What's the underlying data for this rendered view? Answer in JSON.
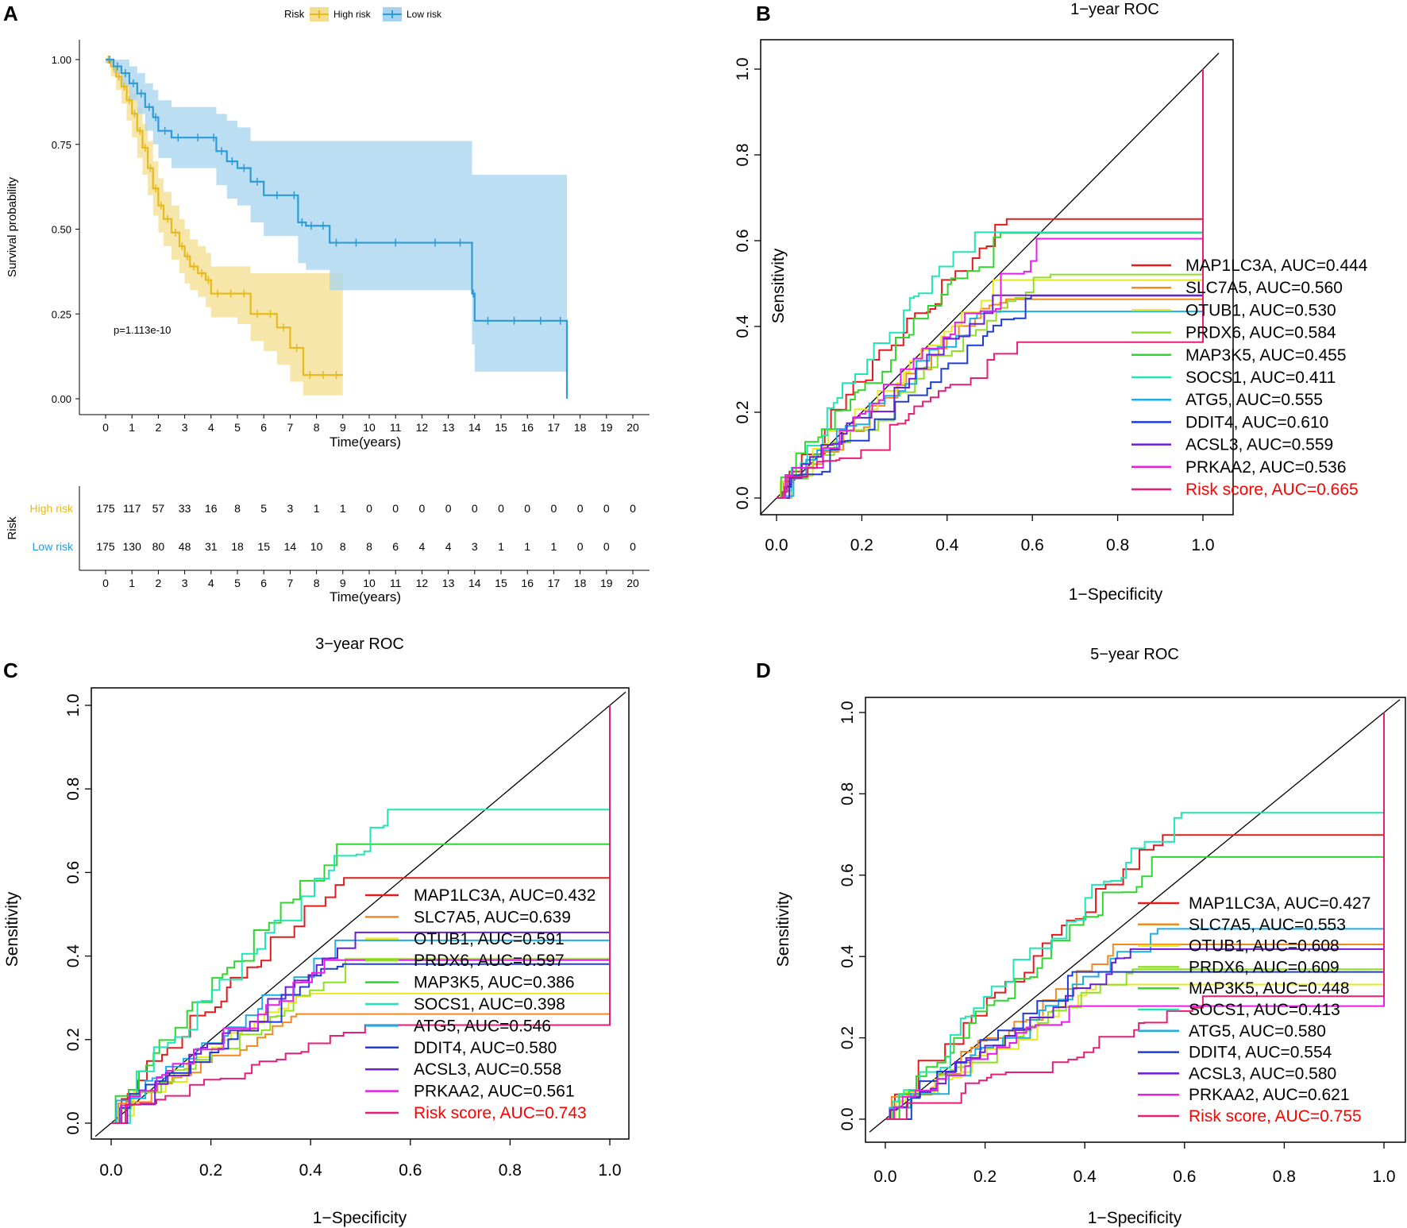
{
  "panels": {
    "A": {
      "letter": "A"
    },
    "B": {
      "letter": "B"
    },
    "C": {
      "letter": "C"
    },
    "D": {
      "letter": "D"
    }
  },
  "colors": {
    "high_risk": "#e6b91e",
    "low_risk": "#2d9bd6",
    "high_ci": "#f3dd8e",
    "low_ci": "#a6d3ef",
    "risk_label_red": "#ff0000"
  },
  "chart_data": [
    {
      "id": "A",
      "type": "line",
      "subtype": "kaplan-meier",
      "title": "",
      "xlabel": "Time(years)",
      "ylabel": "Survival probability",
      "xlim": [
        0,
        20
      ],
      "ylim": [
        0,
        1
      ],
      "xticks": [
        "0",
        "1",
        "2",
        "3",
        "4",
        "5",
        "6",
        "7",
        "8",
        "9",
        "10",
        "11",
        "12",
        "13",
        "14",
        "15",
        "16",
        "17",
        "18",
        "19",
        "20"
      ],
      "yticks": [
        "0.00",
        "0.25",
        "0.50",
        "0.75",
        "1.00"
      ],
      "legend": {
        "title": "Risk",
        "entries": [
          "High risk",
          "Low risk"
        ],
        "position": "top"
      },
      "annotation": "p=1.113e-10",
      "series": [
        {
          "name": "High risk",
          "x": [
            0,
            0.2,
            0.4,
            0.6,
            0.8,
            1.0,
            1.2,
            1.4,
            1.6,
            1.8,
            2.0,
            2.2,
            2.5,
            2.8,
            3.0,
            3.2,
            3.5,
            3.8,
            4.0,
            4.5,
            5.0,
            5.5,
            6.0,
            6.5,
            7.0,
            7.5,
            8.0,
            8.5,
            9.0
          ],
          "y": [
            1.0,
            0.98,
            0.95,
            0.92,
            0.88,
            0.84,
            0.79,
            0.74,
            0.68,
            0.62,
            0.57,
            0.53,
            0.49,
            0.45,
            0.42,
            0.39,
            0.37,
            0.35,
            0.31,
            0.31,
            0.31,
            0.25,
            0.25,
            0.21,
            0.15,
            0.07,
            0.07,
            0.07,
            0.07
          ],
          "ci_upper": [
            1.0,
            1.0,
            0.98,
            0.96,
            0.93,
            0.9,
            0.86,
            0.81,
            0.76,
            0.7,
            0.65,
            0.61,
            0.57,
            0.53,
            0.5,
            0.47,
            0.45,
            0.43,
            0.39,
            0.39,
            0.39,
            0.37,
            0.37,
            0.37,
            0.37,
            0.37,
            0.37,
            0.37,
            0.37
          ],
          "ci_lower": [
            0.99,
            0.95,
            0.91,
            0.87,
            0.82,
            0.77,
            0.71,
            0.66,
            0.6,
            0.54,
            0.49,
            0.45,
            0.41,
            0.37,
            0.34,
            0.32,
            0.3,
            0.27,
            0.24,
            0.24,
            0.22,
            0.17,
            0.14,
            0.1,
            0.05,
            0.01,
            0.01,
            0.01,
            0.01
          ]
        },
        {
          "name": "Low risk",
          "x": [
            0,
            0.3,
            0.6,
            0.9,
            1.2,
            1.5,
            1.8,
            2.0,
            2.5,
            3.0,
            4.0,
            4.2,
            4.6,
            5.0,
            5.5,
            6.0,
            7.0,
            7.3,
            7.6,
            8.0,
            8.5,
            9.0,
            10,
            12,
            13.0,
            13.9,
            14.0,
            15,
            16,
            17,
            17.5
          ],
          "y": [
            1.0,
            0.98,
            0.96,
            0.93,
            0.9,
            0.86,
            0.83,
            0.79,
            0.77,
            0.77,
            0.77,
            0.73,
            0.7,
            0.68,
            0.64,
            0.6,
            0.6,
            0.52,
            0.51,
            0.51,
            0.46,
            0.46,
            0.46,
            0.46,
            0.46,
            0.31,
            0.23,
            0.23,
            0.23,
            0.23,
            0.0
          ],
          "ci_upper": [
            1.0,
            1.0,
            1.0,
            0.98,
            0.96,
            0.93,
            0.91,
            0.88,
            0.86,
            0.86,
            0.86,
            0.84,
            0.82,
            0.8,
            0.76,
            0.76,
            0.76,
            0.76,
            0.76,
            0.76,
            0.76,
            0.76,
            0.76,
            0.76,
            0.76,
            0.66,
            0.66,
            0.66,
            0.66,
            0.66,
            0.66
          ],
          "ci_lower": [
            0.99,
            0.96,
            0.92,
            0.88,
            0.84,
            0.79,
            0.75,
            0.71,
            0.68,
            0.68,
            0.68,
            0.63,
            0.59,
            0.57,
            0.52,
            0.48,
            0.48,
            0.4,
            0.38,
            0.38,
            0.32,
            0.32,
            0.32,
            0.32,
            0.32,
            0.16,
            0.08,
            0.08,
            0.08,
            0.08,
            0.08
          ]
        }
      ],
      "risk_table": {
        "ylabel": "Risk",
        "xlabel": "Time(years)",
        "rows": [
          {
            "name": "High risk",
            "counts": [
              "175",
              "117",
              "57",
              "33",
              "16",
              "8",
              "5",
              "3",
              "1",
              "1",
              "0",
              "0",
              "0",
              "0",
              "0",
              "0",
              "0",
              "0",
              "0",
              "0",
              "0"
            ]
          },
          {
            "name": "Low risk",
            "counts": [
              "175",
              "130",
              "80",
              "48",
              "31",
              "18",
              "15",
              "14",
              "10",
              "8",
              "8",
              "6",
              "4",
              "4",
              "3",
              "1",
              "1",
              "1",
              "0",
              "0",
              "0"
            ]
          }
        ]
      }
    },
    {
      "id": "B",
      "type": "line",
      "subtype": "roc",
      "title": "1−year ROC",
      "xlabel": "1−Specificity",
      "ylabel": "Sensitivity",
      "xlim": [
        0,
        1
      ],
      "ylim": [
        0,
        1
      ],
      "ticks": [
        "0.0",
        "0.2",
        "0.4",
        "0.6",
        "0.8",
        "1.0"
      ],
      "legend_position": "bottom-right",
      "series": [
        {
          "name": "MAP1LC3A",
          "auc": "AUC=0.444",
          "label": "MAP1LC3A, AUC=0.444",
          "color": "#e41a1c"
        },
        {
          "name": "SLC7A5",
          "auc": "AUC=0.560",
          "label": "SLC7A5, AUC=0.560",
          "color": "#f28a1e"
        },
        {
          "name": "OTUB1",
          "auc": "AUC=0.530",
          "label": "OTUB1, AUC=0.530",
          "color": "#e8e81e"
        },
        {
          "name": "PRDX6",
          "auc": "AUC=0.584",
          "label": "PRDX6, AUC=0.584",
          "color": "#8fe01e"
        },
        {
          "name": "MAP3K5",
          "auc": "AUC=0.455",
          "label": "MAP3K5, AUC=0.455",
          "color": "#2ed62e"
        },
        {
          "name": "SOCS1",
          "auc": "AUC=0.411",
          "label": "SOCS1, AUC=0.411",
          "color": "#1ee6b4"
        },
        {
          "name": "ATG5",
          "auc": "AUC=0.555",
          "label": "ATG5, AUC=0.555",
          "color": "#1eaee6"
        },
        {
          "name": "DDIT4",
          "auc": "AUC=0.610",
          "label": "DDIT4, AUC=0.610",
          "color": "#1e3cd6"
        },
        {
          "name": "ACSL3",
          "auc": "AUC=0.559",
          "label": "ACSL3, AUC=0.559",
          "color": "#6a1ed6"
        },
        {
          "name": "PRKAA2",
          "auc": "AUC=0.536",
          "label": "PRKAA2, AUC=0.536",
          "color": "#e61ee6"
        },
        {
          "name": "Risk score",
          "auc": "AUC=0.665",
          "label": "Risk score, AUC=0.665",
          "color": "#e61e78"
        }
      ]
    },
    {
      "id": "C",
      "type": "line",
      "subtype": "roc",
      "title": "3−year ROC",
      "xlabel": "1−Specificity",
      "ylabel": "Sensitivity",
      "xlim": [
        0,
        1
      ],
      "ylim": [
        0,
        1
      ],
      "ticks": [
        "0.0",
        "0.2",
        "0.4",
        "0.6",
        "0.8",
        "1.0"
      ],
      "legend_position": "bottom-right",
      "series": [
        {
          "name": "MAP1LC3A",
          "auc": "AUC=0.432",
          "label": "MAP1LC3A, AUC=0.432",
          "color": "#e41a1c"
        },
        {
          "name": "SLC7A5",
          "auc": "AUC=0.639",
          "label": "SLC7A5, AUC=0.639",
          "color": "#f28a1e"
        },
        {
          "name": "OTUB1",
          "auc": "AUC=0.591",
          "label": "OTUB1, AUC=0.591",
          "color": "#e8e81e"
        },
        {
          "name": "PRDX6",
          "auc": "AUC=0.597",
          "label": "PRDX6, AUC=0.597",
          "color": "#8fe01e"
        },
        {
          "name": "MAP3K5",
          "auc": "AUC=0.386",
          "label": "MAP3K5, AUC=0.386",
          "color": "#2ed62e"
        },
        {
          "name": "SOCS1",
          "auc": "AUC=0.398",
          "label": "SOCS1, AUC=0.398",
          "color": "#1ee6b4"
        },
        {
          "name": "ATG5",
          "auc": "AUC=0.546",
          "label": "ATG5, AUC=0.546",
          "color": "#1eaee6"
        },
        {
          "name": "DDIT4",
          "auc": "AUC=0.580",
          "label": "DDIT4, AUC=0.580",
          "color": "#1e3cd6"
        },
        {
          "name": "ACSL3",
          "auc": "AUC=0.558",
          "label": "ACSL3, AUC=0.558",
          "color": "#6a1ed6"
        },
        {
          "name": "PRKAA2",
          "auc": "AUC=0.561",
          "label": "PRKAA2, AUC=0.561",
          "color": "#e61ee6"
        },
        {
          "name": "Risk score",
          "auc": "AUC=0.743",
          "label": "Risk score, AUC=0.743",
          "color": "#e61e78"
        }
      ]
    },
    {
      "id": "D",
      "type": "line",
      "subtype": "roc",
      "title": "5−year ROC",
      "xlabel": "1−Specificity",
      "ylabel": "Sensitivity",
      "xlim": [
        0,
        1
      ],
      "ylim": [
        0,
        1
      ],
      "ticks": [
        "0.0",
        "0.2",
        "0.4",
        "0.6",
        "0.8",
        "1.0"
      ],
      "legend_position": "bottom-right",
      "series": [
        {
          "name": "MAP1LC3A",
          "auc": "AUC=0.427",
          "label": "MAP1LC3A, AUC=0.427",
          "color": "#e41a1c"
        },
        {
          "name": "SLC7A5",
          "auc": "AUC=0.553",
          "label": "SLC7A5, AUC=0.553",
          "color": "#f28a1e"
        },
        {
          "name": "OTUB1",
          "auc": "AUC=0.608",
          "label": "OTUB1, AUC=0.608",
          "color": "#e8e81e"
        },
        {
          "name": "PRDX6",
          "auc": "AUC=0.609",
          "label": "PRDX6, AUC=0.609",
          "color": "#8fe01e"
        },
        {
          "name": "MAP3K5",
          "auc": "AUC=0.448",
          "label": "MAP3K5, AUC=0.448",
          "color": "#2ed62e"
        },
        {
          "name": "SOCS1",
          "auc": "AUC=0.413",
          "label": "SOCS1, AUC=0.413",
          "color": "#1ee6b4"
        },
        {
          "name": "ATG5",
          "auc": "AUC=0.580",
          "label": "ATG5, AUC=0.580",
          "color": "#1eaee6"
        },
        {
          "name": "DDIT4",
          "auc": "AUC=0.554",
          "label": "DDIT4, AUC=0.554",
          "color": "#1e3cd6"
        },
        {
          "name": "ACSL3",
          "auc": "AUC=0.580",
          "label": "ACSL3, AUC=0.580",
          "color": "#6a1ed6"
        },
        {
          "name": "PRKAA2",
          "auc": "AUC=0.621",
          "label": "PRKAA2, AUC=0.621",
          "color": "#e61ee6"
        },
        {
          "name": "Risk score",
          "auc": "AUC=0.755",
          "label": "Risk score, AUC=0.755",
          "color": "#e61e78"
        }
      ]
    }
  ]
}
